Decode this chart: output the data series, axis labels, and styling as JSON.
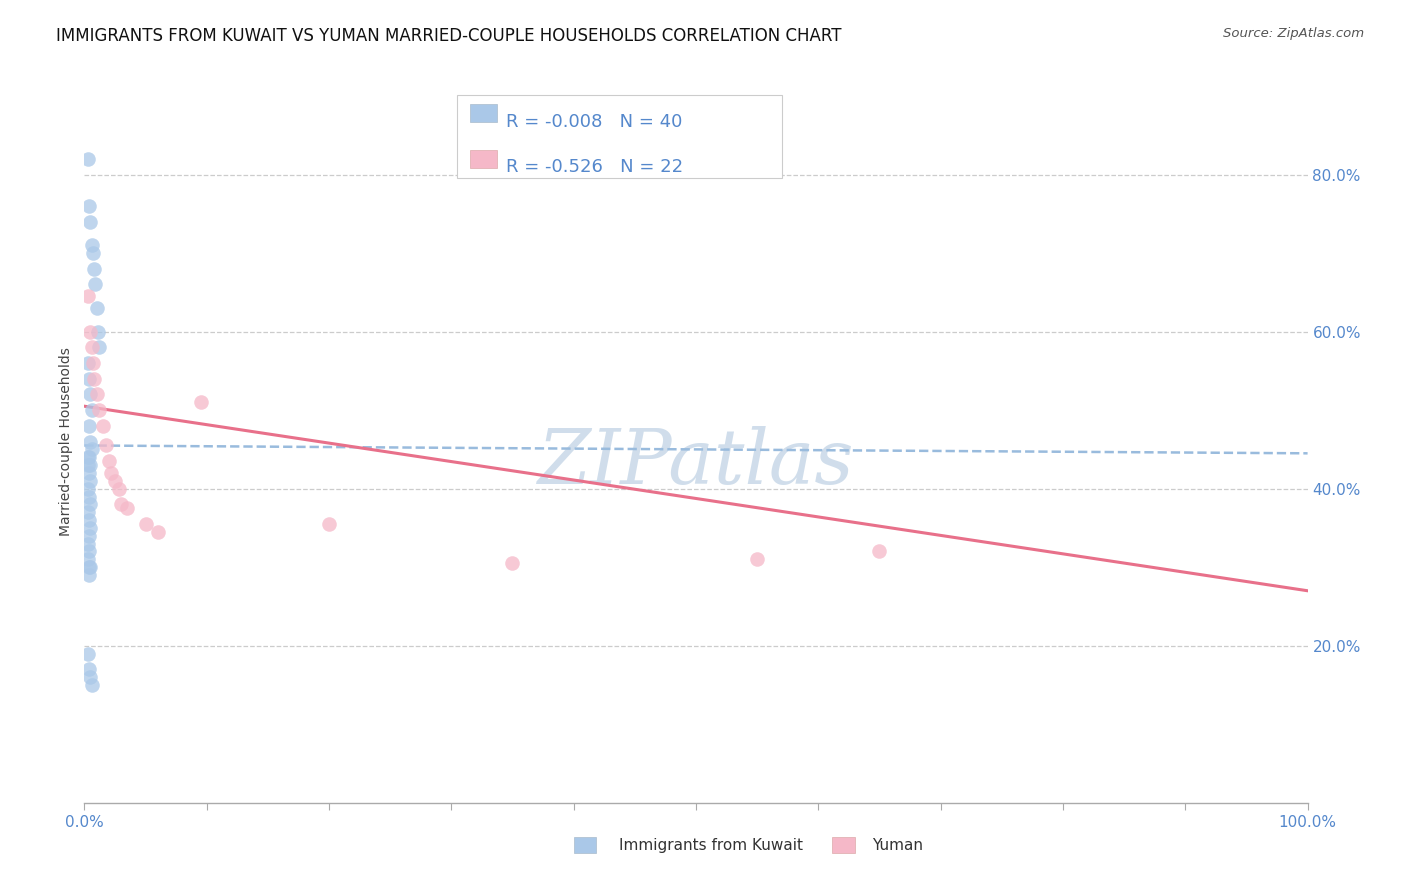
{
  "title": "IMMIGRANTS FROM KUWAIT VS YUMAN MARRIED-COUPLE HOUSEHOLDS CORRELATION CHART",
  "source_text": "Source: ZipAtlas.com",
  "ylabel": "Married-couple Households",
  "watermark": "ZIPatlas",
  "xlim": [
    0.0,
    1.0
  ],
  "ylim": [
    0.0,
    0.92
  ],
  "yticks": [
    0.2,
    0.4,
    0.6,
    0.8
  ],
  "ytick_labels": [
    "20.0%",
    "40.0%",
    "60.0%",
    "80.0%"
  ],
  "xtick_positions": [
    0.0,
    0.1,
    0.2,
    0.3,
    0.4,
    0.5,
    0.6,
    0.7,
    0.8,
    0.9,
    1.0
  ],
  "legend_line1": "R = -0.008   N = 40",
  "legend_line2": "R = -0.526   N = 22",
  "blue_scatter_x": [
    0.003,
    0.004,
    0.005,
    0.006,
    0.007,
    0.008,
    0.009,
    0.01,
    0.011,
    0.012,
    0.003,
    0.004,
    0.005,
    0.006,
    0.004,
    0.005,
    0.006,
    0.003,
    0.004,
    0.005,
    0.003,
    0.004,
    0.005,
    0.003,
    0.004,
    0.005,
    0.003,
    0.004,
    0.005,
    0.004,
    0.003,
    0.004,
    0.003,
    0.004,
    0.005,
    0.004,
    0.003,
    0.004,
    0.005,
    0.006
  ],
  "blue_scatter_y": [
    0.82,
    0.76,
    0.74,
    0.71,
    0.7,
    0.68,
    0.66,
    0.63,
    0.6,
    0.58,
    0.56,
    0.54,
    0.52,
    0.5,
    0.48,
    0.46,
    0.45,
    0.44,
    0.44,
    0.43,
    0.43,
    0.42,
    0.41,
    0.4,
    0.39,
    0.38,
    0.37,
    0.36,
    0.35,
    0.34,
    0.33,
    0.32,
    0.31,
    0.3,
    0.3,
    0.29,
    0.19,
    0.17,
    0.16,
    0.15
  ],
  "pink_scatter_x": [
    0.003,
    0.005,
    0.006,
    0.007,
    0.008,
    0.01,
    0.012,
    0.015,
    0.018,
    0.02,
    0.022,
    0.025,
    0.028,
    0.03,
    0.035,
    0.05,
    0.06,
    0.095,
    0.2,
    0.35,
    0.55,
    0.65
  ],
  "pink_scatter_y": [
    0.645,
    0.6,
    0.58,
    0.56,
    0.54,
    0.52,
    0.5,
    0.48,
    0.455,
    0.435,
    0.42,
    0.41,
    0.4,
    0.38,
    0.375,
    0.355,
    0.345,
    0.51,
    0.355,
    0.305,
    0.31,
    0.32
  ],
  "blue_line_x": [
    0.0,
    1.0
  ],
  "blue_line_y": [
    0.455,
    0.445
  ],
  "pink_line_x": [
    0.0,
    1.0
  ],
  "pink_line_y": [
    0.505,
    0.27
  ],
  "title_fontsize": 12,
  "axis_label_fontsize": 10,
  "tick_label_color": "#5588cc",
  "tick_label_fontsize": 11,
  "legend_fontsize": 13,
  "scatter_size": 110,
  "blue_color": "#aac8e8",
  "pink_color": "#f5b8c8",
  "blue_line_color": "#99bbdd",
  "pink_line_color": "#e8708a",
  "grid_color": "#cccccc",
  "background_color": "#ffffff",
  "watermark_color": "#c8d8e8",
  "legend_text_color": "#5588cc"
}
